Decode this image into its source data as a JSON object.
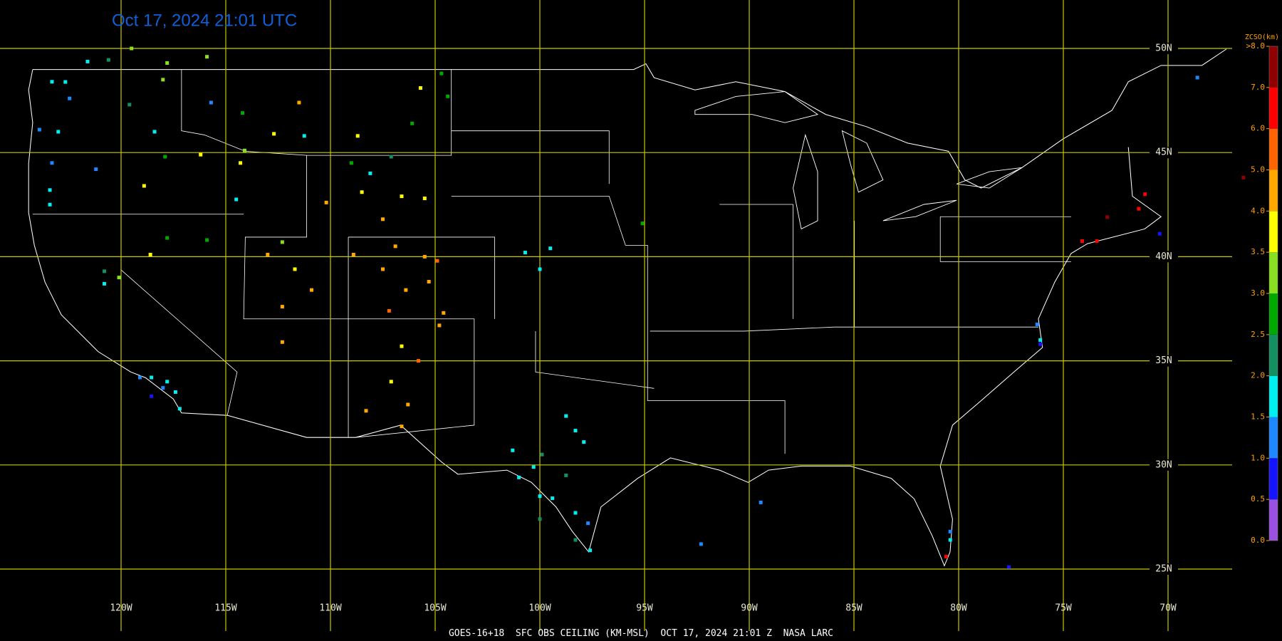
{
  "header": {
    "title": "Oct 17, 2024 21:01 UTC"
  },
  "footer": "GOES-16+18  SFC OBS CEILING (KM-MSL)  OCT 17, 2024 21:01 Z  NASA LARC",
  "map": {
    "lon_ticks": [
      {
        "value": -120,
        "label": "120W"
      },
      {
        "value": -115,
        "label": "115W"
      },
      {
        "value": -110,
        "label": "110W"
      },
      {
        "value": -105,
        "label": "105W"
      },
      {
        "value": -100,
        "label": "100W"
      },
      {
        "value": -95,
        "label": "95W"
      },
      {
        "value": -90,
        "label": "90W"
      },
      {
        "value": -85,
        "label": "85W"
      },
      {
        "value": -80,
        "label": "80W"
      },
      {
        "value": -75,
        "label": "75W"
      },
      {
        "value": -70,
        "label": "70W"
      }
    ],
    "lat_ticks": [
      {
        "value": 50,
        "label": "50N"
      },
      {
        "value": 45,
        "label": "45N"
      },
      {
        "value": 40,
        "label": "40N"
      },
      {
        "value": 35,
        "label": "35N"
      },
      {
        "value": 30,
        "label": "30N"
      },
      {
        "value": 25,
        "label": "25N"
      }
    ],
    "grid_color": "#c8c800"
  },
  "colorbar": {
    "title": "ZCSO(km)",
    "ticks": [
      {
        "value": 0,
        "label": "0.0"
      },
      0.5,
      {
        "value": 1,
        "label": "1.0"
      },
      1.5,
      {
        "value": 2,
        "label": "2.0"
      },
      2.5,
      {
        "value": 3,
        "label": "3.0"
      },
      3.5,
      {
        "value": 4,
        "label": "4.0"
      },
      {
        "value": 5,
        "label": "5.0"
      },
      {
        "value": 6,
        "label": "6.0"
      },
      {
        "value": 7,
        "label": "7.0"
      },
      {
        "value": 8,
        "label": ">8.0"
      }
    ],
    "colors": [
      "#9a50e0",
      "#1414ff",
      "#1e88ff",
      "#00f0f0",
      "#149060",
      "#00a800",
      "#88e020",
      "#ffff00",
      "#ffa800",
      "#ff6400",
      "#ff0000",
      "#900000"
    ]
  },
  "stations": [
    {
      "lon": -122.66,
      "lat": 48.39,
      "ceiling_km": 1.5
    },
    {
      "lon": -122.46,
      "lat": 47.6,
      "ceiling_km": 1.2
    },
    {
      "lon": -123.3,
      "lat": 48.4,
      "ceiling_km": 1.6
    },
    {
      "lon": -121.6,
      "lat": 49.37,
      "ceiling_km": 1.7
    },
    {
      "lon": -120.6,
      "lat": 49.45,
      "ceiling_km": 2.3
    },
    {
      "lon": -119.5,
      "lat": 50.0,
      "ceiling_km": 3.2
    },
    {
      "lon": -117.8,
      "lat": 49.3,
      "ceiling_km": 3.2
    },
    {
      "lon": -115.9,
      "lat": 49.6,
      "ceiling_km": 3.2
    },
    {
      "lon": -118.0,
      "lat": 48.5,
      "ceiling_km": 3.2
    },
    {
      "lon": -119.6,
      "lat": 47.3,
      "ceiling_km": 2.3
    },
    {
      "lon": -123.9,
      "lat": 46.1,
      "ceiling_km": 1.2
    },
    {
      "lon": -123.0,
      "lat": 46.0,
      "ceiling_km": 1.7
    },
    {
      "lon": -118.4,
      "lat": 46.0,
      "ceiling_km": 1.7
    },
    {
      "lon": -115.7,
      "lat": 47.4,
      "ceiling_km": 1.3
    },
    {
      "lon": -123.3,
      "lat": 44.5,
      "ceiling_km": 1.3
    },
    {
      "lon": -121.2,
      "lat": 44.2,
      "ceiling_km": 1.2
    },
    {
      "lon": -123.4,
      "lat": 43.2,
      "ceiling_km": 1.7
    },
    {
      "lon": -123.4,
      "lat": 42.5,
      "ceiling_km": 1.6
    },
    {
      "lon": -118.9,
      "lat": 43.4,
      "ceiling_km": 3.7
    },
    {
      "lon": -117.9,
      "lat": 44.8,
      "ceiling_km": 2.7
    },
    {
      "lon": -116.2,
      "lat": 44.9,
      "ceiling_km": 3.7
    },
    {
      "lon": -114.2,
      "lat": 46.9,
      "ceiling_km": 2.7
    },
    {
      "lon": -112.7,
      "lat": 45.9,
      "ceiling_km": 3.7
    },
    {
      "lon": -111.5,
      "lat": 47.4,
      "ceiling_km": 4.3
    },
    {
      "lon": -111.25,
      "lat": 45.8,
      "ceiling_km": 1.7
    },
    {
      "lon": -108.7,
      "lat": 45.8,
      "ceiling_km": 3.7
    },
    {
      "lon": -105.7,
      "lat": 48.1,
      "ceiling_km": 3.7
    },
    {
      "lon": -104.7,
      "lat": 48.8,
      "ceiling_km": 2.7
    },
    {
      "lon": -104.4,
      "lat": 47.7,
      "ceiling_km": 2.7
    },
    {
      "lon": -106.1,
      "lat": 46.4,
      "ceiling_km": 2.7
    },
    {
      "lon": -114.1,
      "lat": 45.1,
      "ceiling_km": 3.2
    },
    {
      "lon": -114.3,
      "lat": 44.5,
      "ceiling_km": 3.7
    },
    {
      "lon": -114.5,
      "lat": 42.75,
      "ceiling_km": 1.7
    },
    {
      "lon": -109.0,
      "lat": 44.5,
      "ceiling_km": 2.7
    },
    {
      "lon": -108.1,
      "lat": 44.0,
      "ceiling_km": 1.7
    },
    {
      "lon": -106.6,
      "lat": 42.9,
      "ceiling_km": 3.7
    },
    {
      "lon": -107.1,
      "lat": 44.8,
      "ceiling_km": 2.3
    },
    {
      "lon": -105.5,
      "lat": 42.8,
      "ceiling_km": 3.7
    },
    {
      "lon": -110.2,
      "lat": 42.6,
      "ceiling_km": 4.3
    },
    {
      "lon": -108.5,
      "lat": 43.1,
      "ceiling_km": 3.7
    },
    {
      "lon": -107.5,
      "lat": 41.8,
      "ceiling_km": 4.3
    },
    {
      "lon": -120.8,
      "lat": 39.3,
      "ceiling_km": 2.3
    },
    {
      "lon": -120.1,
      "lat": 39.0,
      "ceiling_km": 3.2
    },
    {
      "lon": -120.8,
      "lat": 38.7,
      "ceiling_km": 1.7
    },
    {
      "lon": -118.6,
      "lat": 40.1,
      "ceiling_km": 3.7
    },
    {
      "lon": -117.8,
      "lat": 40.9,
      "ceiling_km": 2.7
    },
    {
      "lon": -115.9,
      "lat": 40.8,
      "ceiling_km": 2.7
    },
    {
      "lon": -112.3,
      "lat": 40.7,
      "ceiling_km": 3.2
    },
    {
      "lon": -111.7,
      "lat": 39.4,
      "ceiling_km": 3.7
    },
    {
      "lon": -113.0,
      "lat": 40.1,
      "ceiling_km": 4.7
    },
    {
      "lon": -110.9,
      "lat": 38.4,
      "ceiling_km": 4.7
    },
    {
      "lon": -112.3,
      "lat": 37.6,
      "ceiling_km": 4.3
    },
    {
      "lon": -112.3,
      "lat": 35.9,
      "ceiling_km": 4.3
    },
    {
      "lon": -108.9,
      "lat": 40.1,
      "ceiling_km": 4.3
    },
    {
      "lon": -106.9,
      "lat": 40.5,
      "ceiling_km": 4.7
    },
    {
      "lon": -105.5,
      "lat": 40.0,
      "ceiling_km": 4.3
    },
    {
      "lon": -104.9,
      "lat": 39.8,
      "ceiling_km": 5.3
    },
    {
      "lon": -105.3,
      "lat": 38.8,
      "ceiling_km": 4.3
    },
    {
      "lon": -106.4,
      "lat": 38.4,
      "ceiling_km": 4.7
    },
    {
      "lon": -104.6,
      "lat": 37.3,
      "ceiling_km": 4.3
    },
    {
      "lon": -107.2,
      "lat": 37.4,
      "ceiling_km": 5.3
    },
    {
      "lon": -107.5,
      "lat": 39.4,
      "ceiling_km": 4.7
    },
    {
      "lon": -106.6,
      "lat": 35.7,
      "ceiling_km": 3.7
    },
    {
      "lon": -105.8,
      "lat": 35.0,
      "ceiling_km": 5.3
    },
    {
      "lon": -104.8,
      "lat": 36.7,
      "ceiling_km": 4.3
    },
    {
      "lon": -107.1,
      "lat": 34.0,
      "ceiling_km": 3.7
    },
    {
      "lon": -106.3,
      "lat": 32.9,
      "ceiling_km": 4.7
    },
    {
      "lon": -108.3,
      "lat": 32.6,
      "ceiling_km": 4.3
    },
    {
      "lon": -106.6,
      "lat": 31.85,
      "ceiling_km": 4.3
    },
    {
      "lon": -100.7,
      "lat": 40.2,
      "ceiling_km": 1.7
    },
    {
      "lon": -99.5,
      "lat": 40.4,
      "ceiling_km": 1.7
    },
    {
      "lon": -100.0,
      "lat": 39.4,
      "ceiling_km": 1.7
    },
    {
      "lon": -95.1,
      "lat": 41.6,
      "ceiling_km": 2.7
    },
    {
      "lon": -98.75,
      "lat": 32.35,
      "ceiling_km": 1.7
    },
    {
      "lon": -98.3,
      "lat": 31.65,
      "ceiling_km": 1.7
    },
    {
      "lon": -97.9,
      "lat": 31.1,
      "ceiling_km": 1.6
    },
    {
      "lon": -101.3,
      "lat": 30.7,
      "ceiling_km": 1.7
    },
    {
      "lon": -99.9,
      "lat": 30.5,
      "ceiling_km": 2.3
    },
    {
      "lon": -100.3,
      "lat": 29.9,
      "ceiling_km": 1.6
    },
    {
      "lon": -101.0,
      "lat": 29.4,
      "ceiling_km": 1.7
    },
    {
      "lon": -98.75,
      "lat": 29.5,
      "ceiling_km": 2.3
    },
    {
      "lon": -99.4,
      "lat": 28.4,
      "ceiling_km": 1.7
    },
    {
      "lon": -98.3,
      "lat": 27.7,
      "ceiling_km": 1.6
    },
    {
      "lon": -97.7,
      "lat": 27.2,
      "ceiling_km": 1.2
    },
    {
      "lon": -100.0,
      "lat": 27.4,
      "ceiling_km": 2.3
    },
    {
      "lon": -98.3,
      "lat": 26.4,
      "ceiling_km": 2.3
    },
    {
      "lon": -97.6,
      "lat": 25.9,
      "ceiling_km": 1.6
    },
    {
      "lon": -100.0,
      "lat": 28.5,
      "ceiling_km": 1.7
    },
    {
      "lon": -118.55,
      "lat": 34.2,
      "ceiling_km": 1.6
    },
    {
      "lon": -117.8,
      "lat": 34.0,
      "ceiling_km": 1.7
    },
    {
      "lon": -117.2,
      "lat": 32.7,
      "ceiling_km": 1.5
    },
    {
      "lon": -118.55,
      "lat": 33.3,
      "ceiling_km": 0.8
    },
    {
      "lon": -118.0,
      "lat": 33.7,
      "ceiling_km": 1.2
    },
    {
      "lon": -119.1,
      "lat": 34.2,
      "ceiling_km": 1.3
    },
    {
      "lon": -117.4,
      "lat": 33.5,
      "ceiling_km": 1.7
    },
    {
      "lon": -89.45,
      "lat": 28.2,
      "ceiling_km": 1.3
    },
    {
      "lon": -92.3,
      "lat": 26.2,
      "ceiling_km": 1.3
    },
    {
      "lon": -80.4,
      "lat": 26.4,
      "ceiling_km": 1.6
    },
    {
      "lon": -80.6,
      "lat": 25.6,
      "ceiling_km": 6.5
    },
    {
      "lon": -80.4,
      "lat": 26.8,
      "ceiling_km": 1.3
    },
    {
      "lon": -77.6,
      "lat": 25.1,
      "ceiling_km": 0.8
    },
    {
      "lon": -76.25,
      "lat": 36.75,
      "ceiling_km": 1.2
    },
    {
      "lon": -76.1,
      "lat": 35.8,
      "ceiling_km": 0.8
    },
    {
      "lon": -76.1,
      "lat": 36.0,
      "ceiling_km": 1.5
    },
    {
      "lon": -74.1,
      "lat": 40.75,
      "ceiling_km": 6.5
    },
    {
      "lon": -73.4,
      "lat": 40.75,
      "ceiling_km": 6.5
    },
    {
      "lon": -72.9,
      "lat": 41.9,
      "ceiling_km": 7.5
    },
    {
      "lon": -71.4,
      "lat": 42.3,
      "ceiling_km": 6.5
    },
    {
      "lon": -71.1,
      "lat": 43.0,
      "ceiling_km": 6.5
    },
    {
      "lon": -70.4,
      "lat": 41.1,
      "ceiling_km": 0.8
    },
    {
      "lon": -68.6,
      "lat": 48.6,
      "ceiling_km": 1.3
    },
    {
      "lon": -66.4,
      "lat": 43.8,
      "ceiling_km": 7.5
    }
  ]
}
